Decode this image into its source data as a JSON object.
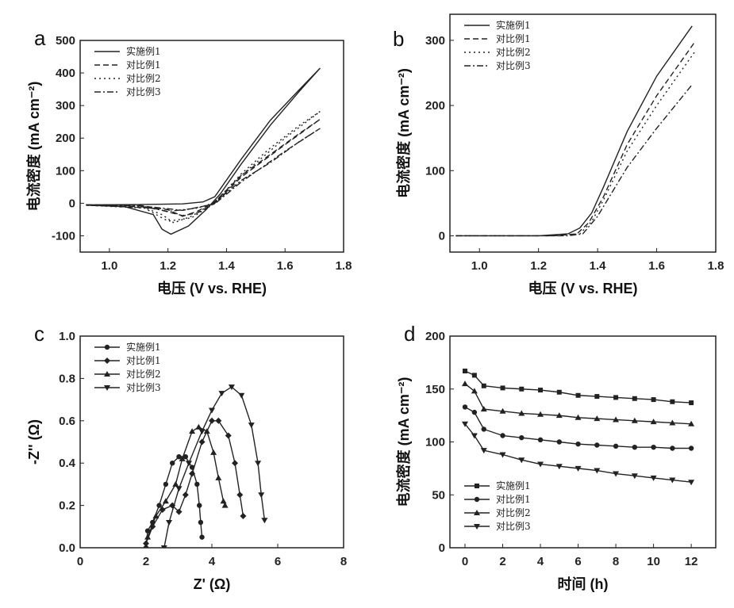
{
  "chart_data": [
    {
      "panel_label": "a",
      "type": "line",
      "xlabel": "电压 (V vs. RHE)",
      "ylabel": "电流密度 (mA cm⁻²)",
      "xlim": [
        0.9,
        1.8
      ],
      "ylim": [
        -150,
        500
      ],
      "xticks": [
        1.0,
        1.2,
        1.4,
        1.6,
        1.8
      ],
      "yticks": [
        -100,
        0,
        100,
        200,
        300,
        400,
        500
      ],
      "legend_position": "top-left",
      "series": [
        {
          "name": "实施例1",
          "style": "solid",
          "points": [
            [
              0.92,
              -5
            ],
            [
              1.1,
              -4
            ],
            [
              1.25,
              -2
            ],
            [
              1.32,
              4
            ],
            [
              1.36,
              20
            ],
            [
              1.45,
              135
            ],
            [
              1.55,
              255
            ],
            [
              1.65,
              350
            ],
            [
              1.72,
              415
            ],
            [
              1.65,
              345
            ],
            [
              1.55,
              240
            ],
            [
              1.45,
              120
            ],
            [
              1.38,
              30
            ],
            [
              1.33,
              -20
            ],
            [
              1.27,
              -70
            ],
            [
              1.21,
              -95
            ],
            [
              1.18,
              -80
            ],
            [
              1.15,
              -35
            ],
            [
              1.05,
              -10
            ],
            [
              0.92,
              -6
            ]
          ]
        },
        {
          "name": "对比例1",
          "style": "dashed",
          "points": [
            [
              0.92,
              -5
            ],
            [
              1.1,
              -6
            ],
            [
              1.2,
              -20
            ],
            [
              1.25,
              -40
            ],
            [
              1.3,
              -25
            ],
            [
              1.36,
              5
            ],
            [
              1.45,
              85
            ],
            [
              1.55,
              150
            ],
            [
              1.65,
              215
            ],
            [
              1.72,
              258
            ],
            [
              1.6,
              180
            ],
            [
              1.45,
              80
            ],
            [
              1.36,
              0
            ],
            [
              1.3,
              -30
            ],
            [
              1.25,
              -38
            ],
            [
              1.15,
              -15
            ],
            [
              0.92,
              -6
            ]
          ]
        },
        {
          "name": "对比例2",
          "style": "dotted",
          "points": [
            [
              0.92,
              -5
            ],
            [
              1.1,
              -7
            ],
            [
              1.18,
              -35
            ],
            [
              1.22,
              -60
            ],
            [
              1.28,
              -40
            ],
            [
              1.36,
              3
            ],
            [
              1.45,
              90
            ],
            [
              1.55,
              170
            ],
            [
              1.65,
              240
            ],
            [
              1.72,
              282
            ],
            [
              1.6,
              200
            ],
            [
              1.45,
              85
            ],
            [
              1.36,
              0
            ],
            [
              1.28,
              -45
            ],
            [
              1.2,
              -55
            ],
            [
              1.12,
              -15
            ],
            [
              0.92,
              -6
            ]
          ]
        },
        {
          "name": "对比例3",
          "style": "dashdot",
          "points": [
            [
              0.92,
              -5
            ],
            [
              1.1,
              -8
            ],
            [
              1.2,
              -25
            ],
            [
              1.3,
              -15
            ],
            [
              1.36,
              2
            ],
            [
              1.45,
              70
            ],
            [
              1.55,
              125
            ],
            [
              1.65,
              190
            ],
            [
              1.72,
              230
            ],
            [
              1.6,
              160
            ],
            [
              1.45,
              65
            ],
            [
              1.36,
              -2
            ],
            [
              1.25,
              -22
            ],
            [
              1.15,
              -12
            ],
            [
              0.92,
              -6
            ]
          ]
        }
      ]
    },
    {
      "panel_label": "b",
      "type": "line",
      "xlabel": "电压 (V vs. RHE)",
      "ylabel": "电流密度 (mA cm⁻²)",
      "xlim": [
        0.9,
        1.8
      ],
      "ylim": [
        -25,
        340
      ],
      "xticks": [
        1.0,
        1.2,
        1.4,
        1.6,
        1.8
      ],
      "yticks": [
        0,
        100,
        200,
        300
      ],
      "legend_position": "top-left",
      "series": [
        {
          "name": "实施例1",
          "style": "solid",
          "points": [
            [
              0.92,
              0
            ],
            [
              1.2,
              0
            ],
            [
              1.3,
              3
            ],
            [
              1.34,
              12
            ],
            [
              1.38,
              35
            ],
            [
              1.42,
              75
            ],
            [
              1.5,
              160
            ],
            [
              1.6,
              245
            ],
            [
              1.72,
              322
            ]
          ]
        },
        {
          "name": "对比例1",
          "style": "dashed",
          "points": [
            [
              0.92,
              0
            ],
            [
              1.25,
              0
            ],
            [
              1.33,
              3
            ],
            [
              1.37,
              20
            ],
            [
              1.42,
              60
            ],
            [
              1.5,
              140
            ],
            [
              1.6,
              215
            ],
            [
              1.73,
              298
            ]
          ]
        },
        {
          "name": "对比例2",
          "style": "dotted",
          "points": [
            [
              0.92,
              0
            ],
            [
              1.25,
              0
            ],
            [
              1.34,
              3
            ],
            [
              1.38,
              22
            ],
            [
              1.42,
              55
            ],
            [
              1.5,
              130
            ],
            [
              1.6,
              200
            ],
            [
              1.73,
              283
            ]
          ]
        },
        {
          "name": "对比例3",
          "style": "dashdot",
          "points": [
            [
              0.92,
              0
            ],
            [
              1.3,
              0
            ],
            [
              1.35,
              3
            ],
            [
              1.4,
              30
            ],
            [
              1.5,
              105
            ],
            [
              1.6,
              165
            ],
            [
              1.72,
              232
            ]
          ]
        }
      ]
    },
    {
      "panel_label": "c",
      "type": "scatter",
      "xlabel": "Z' (Ω)",
      "ylabel": "-Z'' (Ω)",
      "xlim": [
        0,
        8
      ],
      "ylim": [
        0,
        1.0
      ],
      "xticks": [
        0,
        2,
        4,
        6,
        8
      ],
      "yticks": [
        0.0,
        0.2,
        0.4,
        0.6,
        0.8,
        1.0
      ],
      "legend_position": "top-left",
      "series": [
        {
          "name": "实施例1",
          "marker": "circle",
          "points": [
            [
              2.0,
              0
            ],
            [
              2.05,
              0.08
            ],
            [
              2.2,
              0.12
            ],
            [
              2.4,
              0.2
            ],
            [
              2.6,
              0.3
            ],
            [
              2.8,
              0.4
            ],
            [
              3.0,
              0.43
            ],
            [
              3.2,
              0.43
            ],
            [
              3.4,
              0.38
            ],
            [
              3.55,
              0.3
            ],
            [
              3.62,
              0.2
            ],
            [
              3.66,
              0.12
            ],
            [
              3.7,
              0.05
            ]
          ]
        },
        {
          "name": "对比例1",
          "marker": "diamond",
          "points": [
            [
              2.0,
              0.02
            ],
            [
              2.2,
              0.1
            ],
            [
              2.5,
              0.18
            ],
            [
              2.8,
              0.2
            ],
            [
              3.0,
              0.17
            ],
            [
              3.2,
              0.25
            ],
            [
              3.4,
              0.35
            ],
            [
              3.7,
              0.5
            ],
            [
              4.0,
              0.6
            ],
            [
              4.2,
              0.6
            ],
            [
              4.5,
              0.53
            ],
            [
              4.7,
              0.4
            ],
            [
              4.85,
              0.25
            ],
            [
              4.95,
              0.15
            ]
          ]
        },
        {
          "name": "对比例2",
          "marker": "triangle",
          "points": [
            [
              2.05,
              0.05
            ],
            [
              2.3,
              0.15
            ],
            [
              2.6,
              0.22
            ],
            [
              2.9,
              0.3
            ],
            [
              3.1,
              0.42
            ],
            [
              3.4,
              0.55
            ],
            [
              3.6,
              0.57
            ],
            [
              3.85,
              0.55
            ],
            [
              4.05,
              0.45
            ],
            [
              4.2,
              0.33
            ],
            [
              4.35,
              0.22
            ],
            [
              4.4,
              0.2
            ]
          ]
        },
        {
          "name": "对比例3",
          "marker": "down-triangle",
          "points": [
            [
              2.55,
              0
            ],
            [
              2.7,
              0.12
            ],
            [
              3.0,
              0.28
            ],
            [
              3.3,
              0.4
            ],
            [
              3.7,
              0.55
            ],
            [
              4.0,
              0.65
            ],
            [
              4.3,
              0.73
            ],
            [
              4.6,
              0.76
            ],
            [
              4.9,
              0.72
            ],
            [
              5.2,
              0.58
            ],
            [
              5.4,
              0.4
            ],
            [
              5.5,
              0.25
            ],
            [
              5.6,
              0.13
            ]
          ]
        }
      ]
    },
    {
      "panel_label": "d",
      "type": "line",
      "xlabel": "时间 (h)",
      "ylabel": "电流密度 (mA cm⁻²)",
      "xlim": [
        -0.8,
        13.3
      ],
      "ylim": [
        0,
        200
      ],
      "xticks": [
        0,
        2,
        4,
        6,
        8,
        10,
        12
      ],
      "yticks": [
        0,
        50,
        100,
        150,
        200
      ],
      "legend_position": "bottom-left",
      "series": [
        {
          "name": "实施例1",
          "marker": "square",
          "points": [
            [
              0,
              167
            ],
            [
              0.5,
              163
            ],
            [
              1,
              153
            ],
            [
              2,
              151
            ],
            [
              3,
              150
            ],
            [
              4,
              149
            ],
            [
              5,
              147
            ],
            [
              6,
              144
            ],
            [
              7,
              143
            ],
            [
              8,
              142
            ],
            [
              9,
              141
            ],
            [
              10,
              140
            ],
            [
              11,
              138
            ],
            [
              12,
              137
            ]
          ]
        },
        {
          "name": "对比例1",
          "marker": "circle",
          "points": [
            [
              0,
              133
            ],
            [
              0.5,
              128
            ],
            [
              1,
              112
            ],
            [
              2,
              106
            ],
            [
              3,
              104
            ],
            [
              4,
              102
            ],
            [
              5,
              100
            ],
            [
              6,
              98
            ],
            [
              7,
              97
            ],
            [
              8,
              96
            ],
            [
              9,
              95
            ],
            [
              10,
              95
            ],
            [
              11,
              94
            ],
            [
              12,
              94
            ]
          ]
        },
        {
          "name": "对比例2",
          "marker": "triangle",
          "points": [
            [
              0,
              155
            ],
            [
              0.5,
              148
            ],
            [
              1,
              131
            ],
            [
              2,
              129
            ],
            [
              3,
              127
            ],
            [
              4,
              126
            ],
            [
              5,
              125
            ],
            [
              6,
              123
            ],
            [
              7,
              122
            ],
            [
              8,
              121
            ],
            [
              9,
              120
            ],
            [
              10,
              119
            ],
            [
              11,
              118
            ],
            [
              12,
              117
            ]
          ]
        },
        {
          "name": "对比例3",
          "marker": "down-triangle",
          "points": [
            [
              0,
              117
            ],
            [
              0.5,
              106
            ],
            [
              1,
              92
            ],
            [
              2,
              88
            ],
            [
              3,
              83
            ],
            [
              4,
              79
            ],
            [
              5,
              77
            ],
            [
              6,
              75
            ],
            [
              7,
              73
            ],
            [
              8,
              70
            ],
            [
              9,
              68
            ],
            [
              10,
              66
            ],
            [
              11,
              64
            ],
            [
              12,
              62
            ]
          ]
        }
      ]
    }
  ]
}
